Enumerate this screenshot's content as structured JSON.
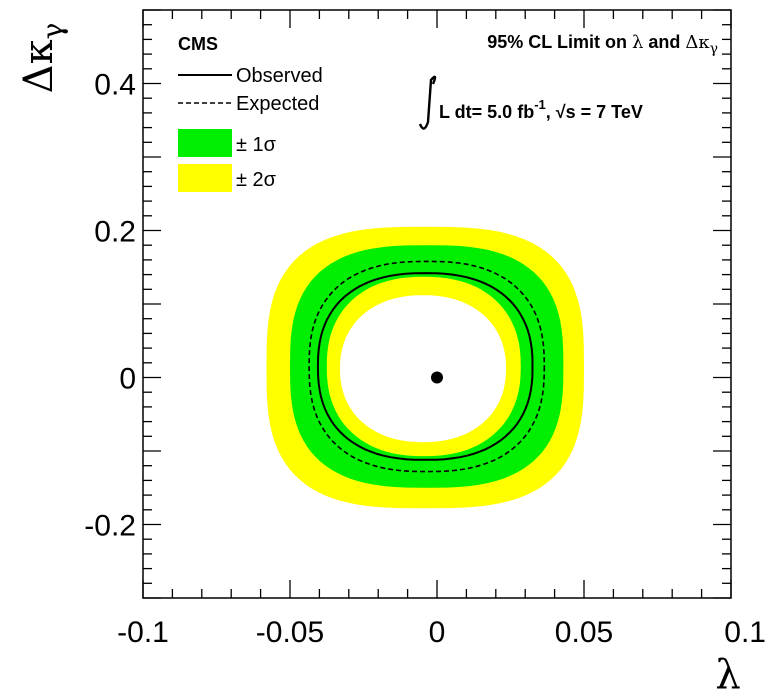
{
  "chart_data": {
    "type": "contour",
    "title": "",
    "xlabel": "λ",
    "ylabel": "Δκ",
    "ylabel_sub": "γ",
    "xlim": [
      -0.1,
      0.1
    ],
    "ylim": [
      -0.3,
      0.5
    ],
    "xticks": [
      -0.1,
      -0.05,
      0,
      0.05,
      0.1
    ],
    "xtick_labels": [
      "-0.1",
      "-0.05",
      "0",
      "0.05",
      "0.1"
    ],
    "yticks": [
      -0.2,
      0,
      0.2,
      0.4
    ],
    "ytick_labels": [
      "-0.2",
      "0",
      "0.2",
      "0.4"
    ],
    "best_fit_point": {
      "x": 0,
      "y": 0
    },
    "contours": {
      "observed": {
        "x_min": -0.0405,
        "x_max": 0.0325,
        "y_min": -0.112,
        "y_max": 0.142
      },
      "expected": {
        "x_min": -0.0435,
        "x_max": 0.0365,
        "y_min": -0.128,
        "y_max": 0.158
      },
      "one_sigma_outer": {
        "x_min": -0.05,
        "x_max": 0.043,
        "y_min": -0.15,
        "y_max": 0.18
      },
      "one_sigma_inner": {
        "x_min": -0.0375,
        "x_max": 0.0285,
        "y_min": -0.107,
        "y_max": 0.137
      },
      "two_sigma_outer": {
        "x_min": -0.058,
        "x_max": 0.05,
        "y_min": -0.178,
        "y_max": 0.205
      },
      "two_sigma_inner": {
        "x_min": -0.033,
        "x_max": 0.0235,
        "y_min": -0.088,
        "y_max": 0.112
      }
    },
    "legend": {
      "title": "CMS",
      "placement": "top-left",
      "entries": [
        {
          "label": "Observed",
          "style": "solid"
        },
        {
          "label": "Expected",
          "style": "dashed"
        },
        {
          "label": "± 1σ",
          "color": "#00ee00"
        },
        {
          "label": "± 2σ",
          "color": "#ffff00"
        }
      ]
    },
    "annotations": {
      "limit_prefix": "95% CL Limit on",
      "limit_lambda": "λ",
      "limit_and": "and",
      "limit_dk": "Δκ",
      "limit_gamma": "γ",
      "lumi_text": "L dt= 5.0 fb",
      "lumi_exp": "-1",
      "sqrt_text": "√s = 7 TeV"
    },
    "colors": {
      "one_sigma": "#00ee00",
      "two_sigma": "#ffff00",
      "line": "#000000"
    }
  }
}
